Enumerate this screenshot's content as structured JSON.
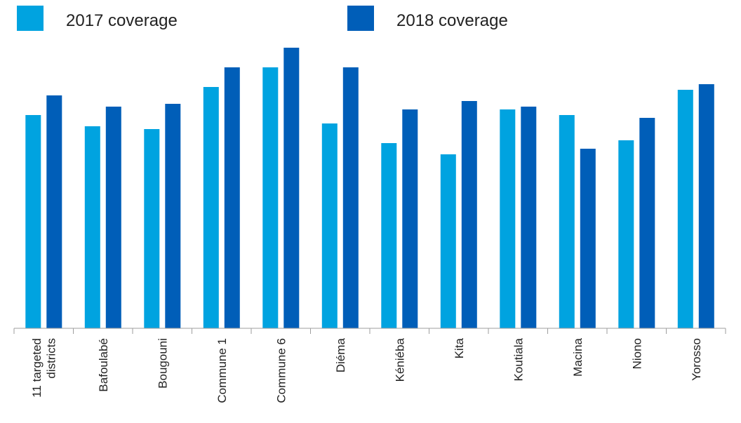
{
  "chart_data": {
    "type": "bar",
    "title": "",
    "xlabel": "",
    "ylabel": "",
    "ylim": [
      0,
      100
    ],
    "grid": false,
    "legend_position": "top",
    "categories": [
      "11 targeted districts",
      "Bafoulabé",
      "Bougouni",
      "Commune 1",
      "Commune 6",
      "Diéma",
      "Kéniéba",
      "Kita",
      "Koutiala",
      "Macina",
      "Niono",
      "Yorosso"
    ],
    "series": [
      {
        "name": "2017 coverage",
        "color": "#00a3e0",
        "values": [
          76,
          72,
          71,
          86,
          93,
          73,
          66,
          62,
          78,
          76,
          67,
          85
        ]
      },
      {
        "name": "2018 coverage",
        "color": "#005eb8",
        "values": [
          83,
          79,
          80,
          93,
          100,
          93,
          78,
          81,
          79,
          64,
          75,
          87
        ]
      }
    ]
  }
}
